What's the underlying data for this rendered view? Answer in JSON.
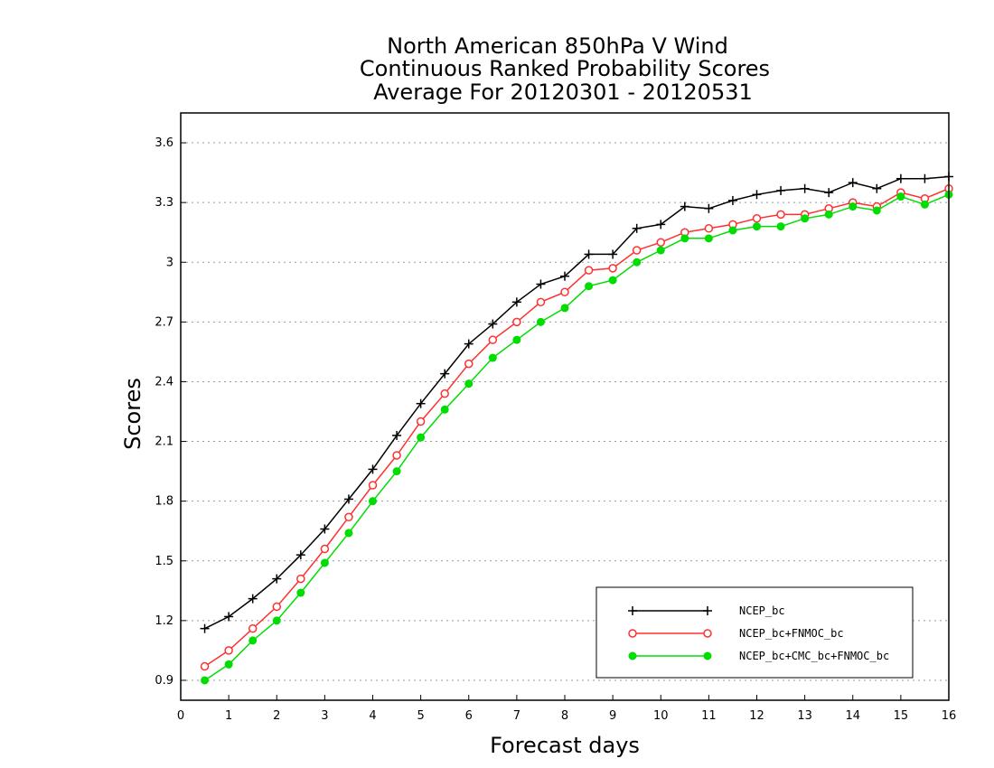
{
  "chart_data": {
    "type": "line",
    "title_lines": [
      "North American 850hPa V Wind",
      "Continuous Ranked Probability Scores",
      "Average For 20120301 - 20120531"
    ],
    "xlabel": "Forecast days",
    "ylabel": "Scores",
    "xlim": [
      0,
      16
    ],
    "ylim": [
      0.8,
      3.75
    ],
    "x_ticks": [
      "0",
      "1",
      "2",
      "3",
      "4",
      "5",
      "6",
      "7",
      "8",
      "9",
      "10",
      "11",
      "12",
      "13",
      "14",
      "15",
      "16"
    ],
    "y_ticks": [
      "0.9",
      "1.2",
      "1.5",
      "1.8",
      "2.1",
      "2.4",
      "2.7",
      "3",
      "3.3",
      "3.6"
    ],
    "grid": "horizontal dotted",
    "legend_position": "bottom-right",
    "x": [
      0.5,
      1,
      1.5,
      2,
      2.5,
      3,
      3.5,
      4,
      4.5,
      5,
      5.5,
      6,
      6.5,
      7,
      7.5,
      8,
      8.5,
      9,
      9.5,
      10,
      10.5,
      11,
      11.5,
      12,
      12.5,
      13,
      13.5,
      14,
      14.5,
      15,
      15.5,
      16
    ],
    "series": [
      {
        "name": "NCEP_bc",
        "color": "#000000",
        "marker": "plus",
        "values": [
          1.16,
          1.22,
          1.31,
          1.41,
          1.53,
          1.66,
          1.81,
          1.96,
          2.13,
          2.29,
          2.44,
          2.59,
          2.69,
          2.8,
          2.89,
          2.93,
          3.04,
          3.04,
          3.17,
          3.19,
          3.28,
          3.27,
          3.31,
          3.34,
          3.36,
          3.37,
          3.35,
          3.4,
          3.37,
          3.42,
          3.42,
          3.43
        ]
      },
      {
        "name": "NCEP_bc+FNMOC_bc",
        "color": "#ff3030",
        "marker": "open-circle",
        "values": [
          0.97,
          1.05,
          1.16,
          1.27,
          1.41,
          1.56,
          1.72,
          1.88,
          2.03,
          2.2,
          2.34,
          2.49,
          2.61,
          2.7,
          2.8,
          2.85,
          2.96,
          2.97,
          3.06,
          3.1,
          3.15,
          3.17,
          3.19,
          3.22,
          3.24,
          3.24,
          3.27,
          3.3,
          3.28,
          3.35,
          3.32,
          3.37
        ]
      },
      {
        "name": "NCEP_bc+CMC_bc+FNMOC_bc",
        "color": "#00dd00",
        "marker": "filled-circle",
        "values": [
          0.9,
          0.98,
          1.1,
          1.2,
          1.34,
          1.49,
          1.64,
          1.8,
          1.95,
          2.12,
          2.26,
          2.39,
          2.52,
          2.61,
          2.7,
          2.77,
          2.88,
          2.91,
          3.0,
          3.06,
          3.12,
          3.12,
          3.16,
          3.18,
          3.18,
          3.22,
          3.24,
          3.28,
          3.26,
          3.33,
          3.29,
          3.34
        ]
      }
    ]
  }
}
